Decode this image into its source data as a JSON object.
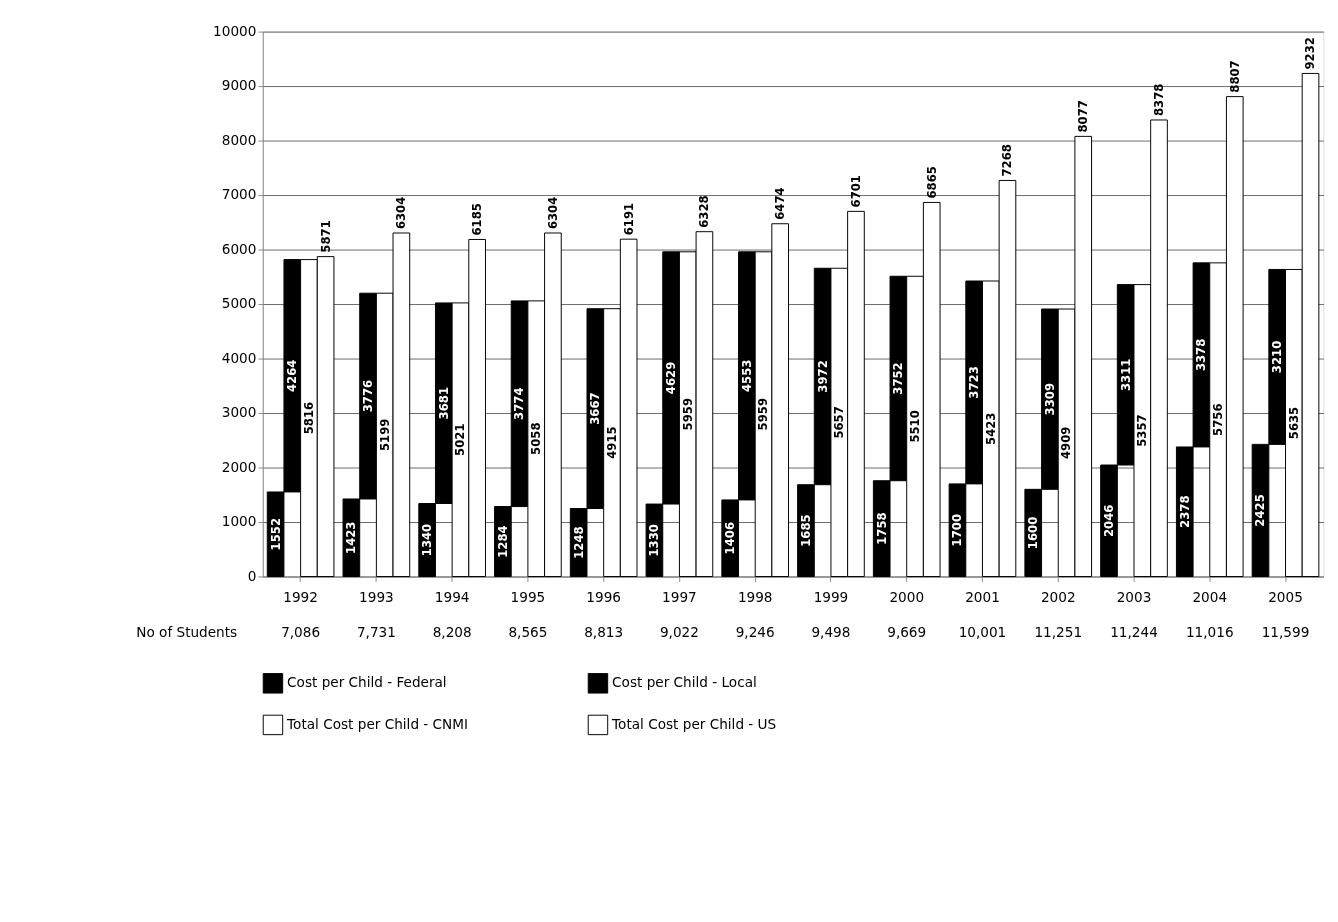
{
  "chart_data": {
    "type": "bar",
    "data_labels": true,
    "grid": "y",
    "legend": "bottom",
    "categories": [
      "1992",
      "1993",
      "1994",
      "1995",
      "1996",
      "1997",
      "1998",
      "1999",
      "2000",
      "2001",
      "2002",
      "2003",
      "2004",
      "2005"
    ],
    "ylim": [
      0,
      10000
    ],
    "yticks": [
      0,
      1000,
      2000,
      3000,
      4000,
      5000,
      6000,
      7000,
      8000,
      9000,
      10000
    ],
    "series": [
      {
        "name": "Cost per Child - Federal",
        "color": "#000000",
        "values": [
          1552,
          1423,
          1340,
          1284,
          1248,
          1330,
          1406,
          1685,
          1758,
          1700,
          1600,
          2046,
          2378,
          2425
        ]
      },
      {
        "name": "Cost per Child - Local",
        "color": "#000000",
        "base": [
          1552,
          1423,
          1340,
          1284,
          1248,
          1330,
          1406,
          1685,
          1758,
          1700,
          1600,
          2046,
          2378,
          2425
        ],
        "values": [
          4264,
          3776,
          3681,
          3774,
          3667,
          4629,
          4553,
          3972,
          3752,
          3723,
          3309,
          3311,
          3378,
          3210
        ]
      },
      {
        "name": "Total Cost per Child - CNMI",
        "color": "#ffffff",
        "values": [
          5816,
          5199,
          5021,
          5058,
          4915,
          5959,
          5959,
          5657,
          5510,
          5423,
          4909,
          5357,
          5756,
          5635
        ]
      },
      {
        "name": "Total Cost per Child - US",
        "color": "#ffffff",
        "values": [
          5871,
          6304,
          6185,
          6304,
          6191,
          6328,
          6474,
          6701,
          6865,
          7268,
          8077,
          8378,
          8807,
          9232
        ]
      }
    ],
    "annotations": [
      "No of Students",
      "7,086",
      "7,731",
      "8,208",
      "8,565",
      "8,813",
      "9,022",
      "9,246",
      "9,498",
      "9,669",
      "10,001",
      "11,251",
      "11,244",
      "11,016",
      "11,599"
    ]
  }
}
